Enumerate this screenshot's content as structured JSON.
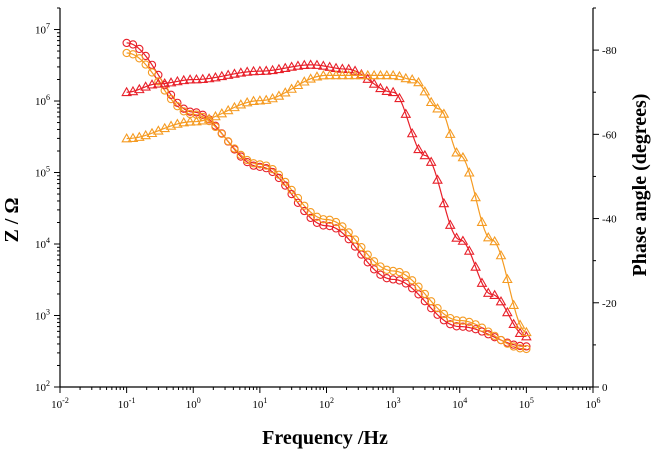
{
  "chart_data": {
    "type": "scatter",
    "title": "",
    "xlabel": "Frequency /Hz",
    "ylabel_left": "Z / Ω",
    "ylabel_right": "Phase angle (degrees)",
    "x_scale": "log",
    "y_left_scale": "log",
    "xlim": [
      0.01,
      1000000
    ],
    "ylim_left": [
      100,
      20000000
    ],
    "ylim_right": [
      0,
      -90
    ],
    "x_ticks": [
      {
        "base": "10",
        "exp": "-2"
      },
      {
        "base": "10",
        "exp": "-1"
      },
      {
        "base": "10",
        "exp": "0"
      },
      {
        "base": "10",
        "exp": "1"
      },
      {
        "base": "10",
        "exp": "2"
      },
      {
        "base": "10",
        "exp": "3"
      },
      {
        "base": "10",
        "exp": "4"
      },
      {
        "base": "10",
        "exp": "5"
      },
      {
        "base": "10",
        "exp": "6"
      }
    ],
    "y_left_ticks": [
      {
        "base": "10",
        "exp": "2"
      },
      {
        "base": "10",
        "exp": "3"
      },
      {
        "base": "10",
        "exp": "4"
      },
      {
        "base": "10",
        "exp": "5"
      },
      {
        "base": "10",
        "exp": "6"
      },
      {
        "base": "10",
        "exp": "7"
      }
    ],
    "y_right_ticks": [
      "0",
      "-20",
      "-40",
      "-60",
      "-80"
    ],
    "grid": false,
    "legend": "none",
    "series": [
      {
        "color": "#e8202a",
        "marker": "circle",
        "axis": "left",
        "points": [
          [
            0.1,
            6500000
          ],
          [
            1,
            700000
          ],
          [
            10,
            120000
          ],
          [
            100,
            18000
          ],
          [
            1000,
            3200
          ],
          [
            10000,
            700
          ],
          [
            100000,
            370
          ]
        ]
      },
      {
        "color": "#f59b22",
        "marker": "circle",
        "axis": "left",
        "points": [
          [
            0.1,
            4700000
          ],
          [
            1,
            650000
          ],
          [
            10,
            130000
          ],
          [
            100,
            22000
          ],
          [
            1000,
            4200
          ],
          [
            10000,
            850
          ],
          [
            100000,
            340
          ]
        ]
      },
      {
        "color": "#e8202a",
        "marker": "triangle",
        "axis": "right",
        "points": [
          [
            0.1,
            -70
          ],
          [
            0.3,
            -72
          ],
          [
            1,
            -73
          ],
          [
            10,
            -75
          ],
          [
            60,
            -76.5
          ],
          [
            200,
            -75.5
          ],
          [
            1000,
            -70
          ],
          [
            3000,
            -55
          ],
          [
            10000,
            -35
          ],
          [
            30000,
            -22
          ],
          [
            100000,
            -12
          ]
        ]
      },
      {
        "color": "#f59b22",
        "marker": "triangle",
        "axis": "right",
        "points": [
          [
            0.1,
            -59
          ],
          [
            1,
            -63
          ],
          [
            10,
            -68
          ],
          [
            100,
            -74
          ],
          [
            1000,
            -74
          ],
          [
            2000,
            -73
          ],
          [
            5000,
            -66
          ],
          [
            10000,
            -55
          ],
          [
            30000,
            -35
          ],
          [
            100000,
            -13
          ]
        ]
      }
    ]
  }
}
